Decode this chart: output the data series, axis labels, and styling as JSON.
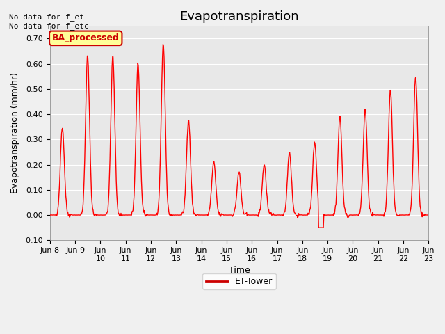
{
  "title": "Evapotranspiration",
  "xlabel": "Time",
  "ylabel": "Evapotranspiration (mm/hr)",
  "ylim": [
    -0.1,
    0.75
  ],
  "yticks": [
    -0.1,
    0.0,
    0.1,
    0.2,
    0.3,
    0.4,
    0.5,
    0.6,
    0.7
  ],
  "annotation_text_line1": "No data for f_et",
  "annotation_text_line2": "No data for f_etc",
  "legend_label": "ET-Tower",
  "legend_line_color": "#cc0000",
  "badge_text": "BA_processed",
  "badge_facecolor": "#ffff99",
  "badge_edgecolor": "#cc0000",
  "badge_textcolor": "#cc0000",
  "line_color": "#ff0000",
  "fig_bg_color": "#f0f0f0",
  "ax_bg_color": "#e8e8e8",
  "title_fontsize": 13,
  "axis_fontsize": 9,
  "tick_fontsize": 8,
  "peak_values": [
    0.35,
    0.63,
    0.63,
    0.6,
    0.68,
    0.38,
    0.21,
    0.17,
    0.2,
    0.25,
    0.29,
    0.39,
    0.42,
    0.5,
    0.55
  ],
  "xtick_positions": [
    8,
    9,
    10,
    11,
    12,
    13,
    14,
    15,
    16,
    17,
    18,
    19,
    20,
    21,
    22,
    23
  ],
  "xtick_labels": [
    "Jun 8",
    "Jun 9",
    "Jun\n10",
    "Jun\n11",
    "Jun\n12",
    "Jun\n13",
    "Jun\n14",
    "Jun\n15",
    "Jun\n16",
    "Jun\n17",
    "Jun\n18",
    "Jun\n19",
    "Jun\n20",
    "Jun\n21",
    "Jun\n22",
    "Jun\n23"
  ]
}
